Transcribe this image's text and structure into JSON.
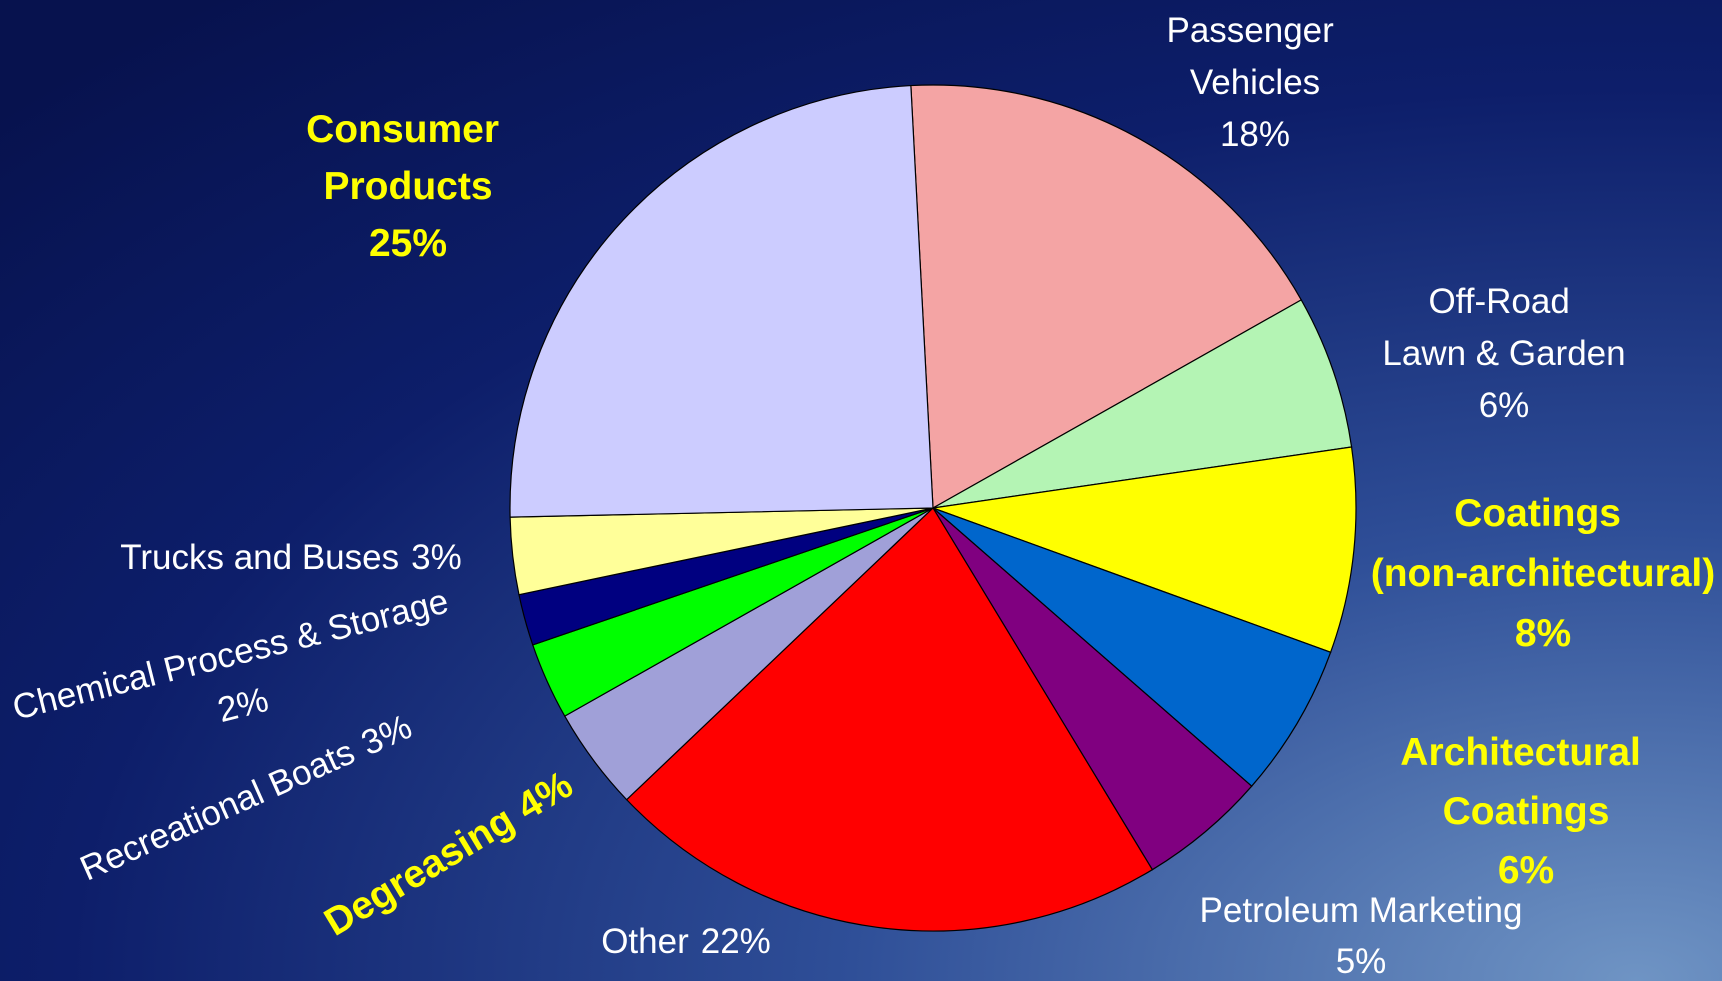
{
  "chart_data": {
    "type": "pie",
    "categories": [
      "Passenger Vehicles",
      "Off-Road Lawn & Garden",
      "Coatings (non-architectural)",
      "Architectural Coatings",
      "Petroleum Marketing",
      "Other",
      "Degreasing",
      "Recreational Boats",
      "Chemical Process & Storage",
      "Trucks and Buses",
      "Consumer Products"
    ],
    "values": [
      18,
      6,
      8,
      6,
      5,
      22,
      4,
      3,
      2,
      3,
      25
    ],
    "value_labels": [
      "18%",
      "6%",
      "8%",
      "6%",
      "5%",
      "22%",
      "4%",
      "3%",
      "2%",
      "3%",
      "25%"
    ],
    "colors": [
      "#f4a4a4",
      "#b4f4b4",
      "#ffff00",
      "#0066cc",
      "#800080",
      "#ff0000",
      "#a0a0d8",
      "#00ff00",
      "#000080",
      "#ffff99",
      "#ccccff"
    ]
  }
}
